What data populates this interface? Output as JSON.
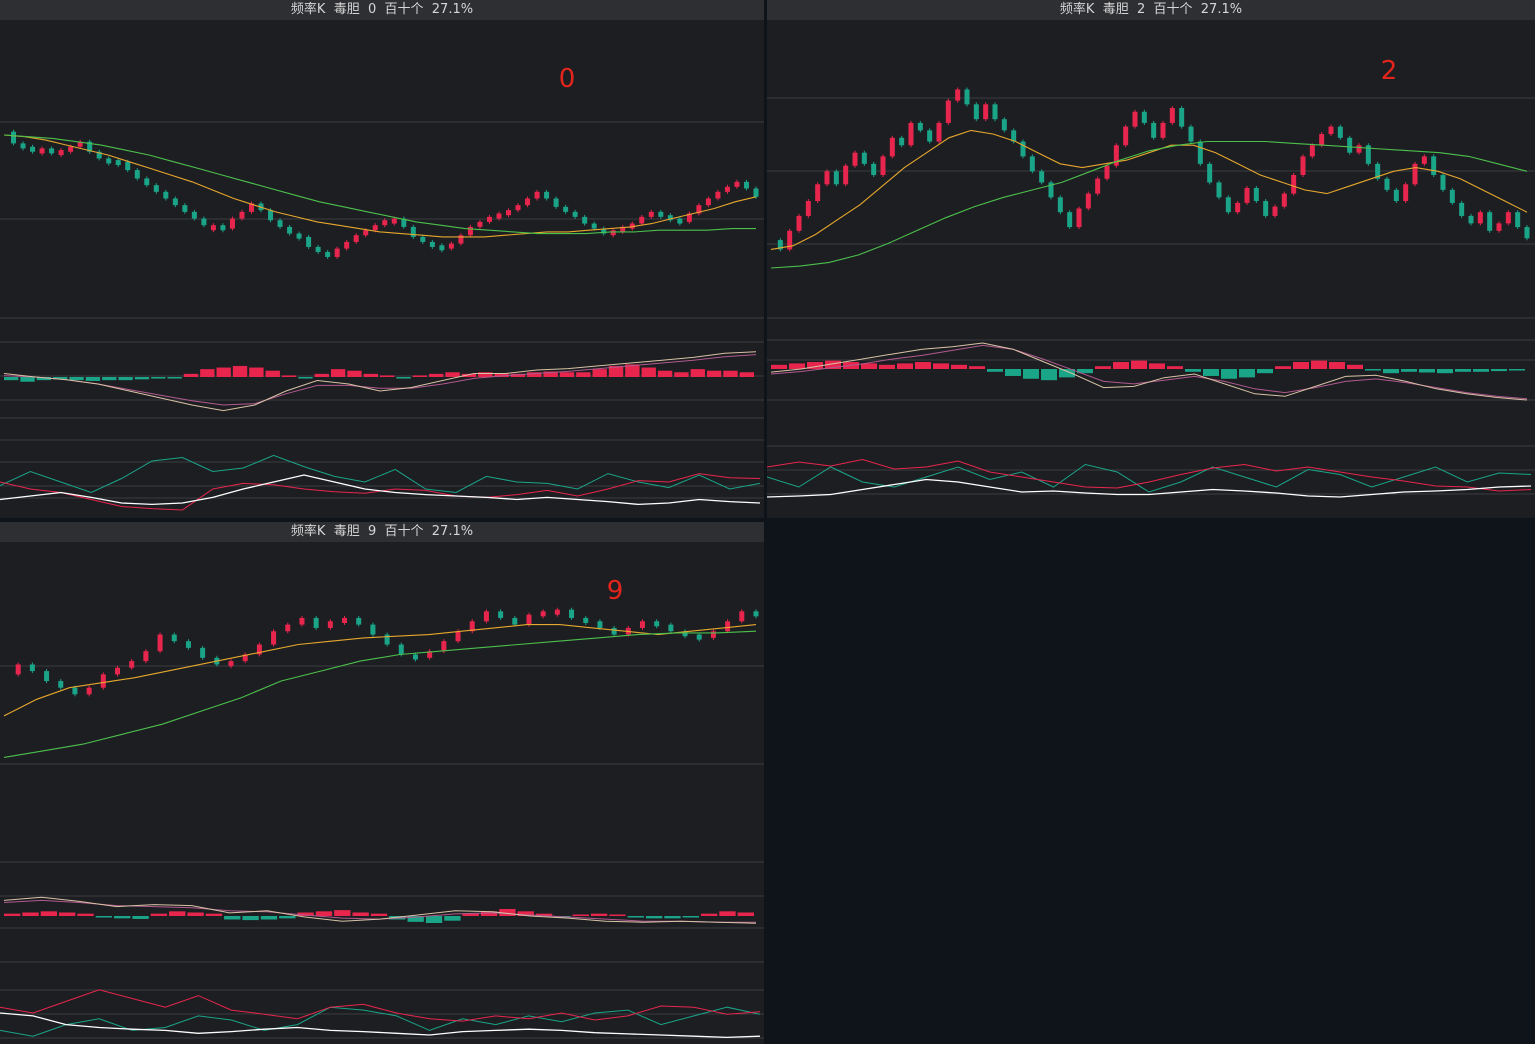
{
  "colors": {
    "background": "#0f131a",
    "panel_bg": "#1d1e22",
    "header_bg": "#2e2f33",
    "grid": "#3b3c40",
    "up": "#e8264d",
    "down": "#1aa589",
    "ma_short": "#e6a72d",
    "ma_long": "#4cc04c",
    "macd_dif": "#d8c3a5",
    "macd_dea": "#b05a8e",
    "kdj_k": "#ffffff",
    "kdj_d": "#1aa589",
    "kdj_j": "#e8264d",
    "label": "#e5241c"
  },
  "panels": [
    {
      "header": "频率K  毒胆  0  百十个  27.1%",
      "big_label": "0",
      "chart_data": {
        "type": "candlestick",
        "main": {
          "path": "0.90,0.83,0.81,0.78,0.80,0.78,0.79,0.81,0.84,0.78,0.74,0.73,0.72,0.67,0.62,0.58,0.54,0.50,0.46,0.42,0.38,0.34,0.34,0.32,0.38,0.42,0.47,0.43,0.37,0.33,0.29,0.27,0.21,0.18,0.15,0.20,0.24,0.28,0.31,0.34,0.37,0.38,0.33,0.27,0.24,0.22,0.21,0.23,0.28,0.33,0.36,0.39,0.41,0.43,0.46,0.50,0.54,0.50,0.45,0.42,0.39,0.35,0.32,0.30,0.31,0.33,0.35,0.39,0.42,0.40,0.38,0.36,0.41,0.46,0.50,0.54,0.57,0.60,0.56,0.51",
          "ma_short": "0.88,0.87,0.85,0.82,0.79,0.76,0.72,0.68,0.64,0.60,0.55,0.50,0.46,0.42,0.39,0.36,0.34,0.32,0.30,0.29,0.28,0.27,0.27,0.27,0.28,0.29,0.30,0.30,0.31,0.32,0.33,0.35,0.38,0.41,0.44,0.48,0.51",
          "ma_long": "0.88,0.87,0.86,0.84,0.82,0.79,0.76,0.72,0.68,0.64,0.60,0.56,0.52,0.48,0.45,0.42,0.39,0.36,0.34,0.32,0.31,0.30,0.29,0.29,0.29,0.30,0.30,0.31,0.31,0.31,0.32,0.32",
          "levels": 3
        },
        "macd": {
          "dif": "0.55,0.50,0.46,0.40,0.30,0.20,0.10,0.02,0.10,0.30,0.45,0.40,0.30,0.35,0.45,0.55,0.55,0.60,0.62,0.66,0.70,0.74,0.78,0.84,0.86",
          "dea": "0.52,0.50,0.46,0.40,0.32,0.24,0.16,0.10,0.12,0.26,0.38,0.38,0.34,0.34,0.40,0.48,0.52,0.55,0.58,0.62,0.66,0.70,0.74,0.79,0.82",
          "hist": "-0.2,-0.3,-0.2,-0.15,-0.2,-0.25,-0.2,-0.2,-0.15,-0.1,-0.05,0.2,0.5,0.6,0.7,0.6,0.4,0.1,-0.05,0.2,0.5,0.4,0.2,0.1,-0.05,0.1,0.2,0.3,0.2,0.3,0.25,0.2,0.3,0.35,0.3,0.3,0.5,0.7,0.8,0.6,0.4,0.3,0.5,0.4,0.4,0.3"
        },
        "kdj": {
          "k": "0.15,0.20,0.25,0.18,0.10,0.08,0.10,0.18,0.30,0.40,0.50,0.40,0.30,0.25,0.22,0.20,0.18,0.15,0.18,0.15,0.12,0.08,0.10,0.15,0.12,0.10",
          "d": "0.35,0.55,0.40,0.25,0.45,0.70,0.75,0.55,0.60,0.78,0.62,0.48,0.40,0.58,0.30,0.25,0.48,0.40,0.38,0.30,0.52,0.40,0.32,0.50,0.30,0.38",
          "j": "0.40,0.30,0.25,0.15,0.05,0.02,0.00,0.30,0.38,0.36,0.30,0.26,0.24,0.30,0.28,0.20,0.18,0.22,0.28,0.20,0.30,0.42,0.40,0.52,0.46,0.45"
        }
      }
    },
    {
      "header": "频率K  毒胆  2  百十个  27.1%",
      "big_label": "2",
      "chart_data": {
        "type": "candlestick",
        "main": {
          "path": "0.15,0.10,0.20,0.28,0.36,0.45,0.52,0.45,0.55,0.62,0.56,0.50,0.60,0.70,0.66,0.78,0.74,0.68,0.78,0.90,0.96,0.88,0.80,0.88,0.80,0.74,0.68,0.60,0.52,0.46,0.38,0.30,0.22,0.32,0.40,0.48,0.55,0.66,0.76,0.84,0.78,0.70,0.78,0.86,0.76,0.68,0.56,0.46,0.38,0.30,0.35,0.43,0.36,0.28,0.33,0.40,0.50,0.60,0.66,0.72,0.76,0.70,0.62,0.66,0.56,0.48,0.42,0.36,0.45,0.56,0.60,0.50,0.42,0.35,0.28,0.24,0.30,0.20,0.24,0.30,0.22,0.16",
          "ma_short": "0.10,0.12,0.18,0.26,0.34,0.44,0.54,0.62,0.70,0.74,0.72,0.68,0.62,0.56,0.54,0.56,0.58,0.62,0.66,0.66,0.62,0.56,0.50,0.46,0.42,0.40,0.44,0.48,0.52,0.54,0.52,0.48,0.42,0.36,0.30",
          "ma_long": "0.00,0.01,0.03,0.07,0.13,0.20,0.27,0.33,0.38,0.42,0.46,0.52,0.58,0.63,0.66,0.68,0.68,0.68,0.67,0.66,0.65,0.64,0.63,0.62,0.60,0.56,0.52",
          "levels": 4
        },
        "macd": {
          "dif": "0.45,0.50,0.58,0.66,0.74,0.82,0.86,0.92,0.82,0.62,0.42,0.20,0.22,0.36,0.42,0.26,0.10,0.06,0.22,0.38,0.40,0.30,0.18,0.10,0.04,0.00",
          "dea": "0.42,0.46,0.52,0.58,0.66,0.72,0.80,0.88,0.82,0.66,0.48,0.30,0.26,0.32,0.38,0.30,0.18,0.12,0.20,0.30,0.34,0.28,0.20,0.12,0.06,0.02",
          "hist": "0.3,0.4,0.5,0.6,0.5,0.4,0.3,0.4,0.5,0.4,0.3,0.2,-0.2,-0.5,-0.7,-0.8,-0.6,-0.3,0.2,0.5,0.6,0.4,0.2,-0.2,-0.5,-0.7,-0.6,-0.3,0.2,0.5,0.6,0.5,0.3,-0.1,-0.3,-0.2,-0.25,-0.3,-0.2,-0.2,-0.15,-0.1"
        },
        "kdj": {
          "k": "0.10,0.12,0.15,0.25,0.35,0.45,0.40,0.30,0.20,0.22,0.18,0.15,0.15,0.20,0.25,0.22,0.18,0.12,0.10,0.15,0.20,0.22,0.25,0.30,0.32",
          "d": "0.50,0.30,0.70,0.40,0.30,0.50,0.70,0.45,0.60,0.30,0.75,0.60,0.20,0.40,0.70,0.50,0.30,0.65,0.55,0.30,0.50,0.70,0.40,0.58,0.55",
          "j": "0.70,0.80,0.72,0.85,0.66,0.70,0.82,0.60,0.50,0.40,0.30,0.28,0.40,0.55,0.68,0.75,0.62,0.70,0.60,0.50,0.42,0.32,0.30,0.22,0.25"
        }
      }
    },
    {
      "header": "频率K  毒胆  9  百十个  27.1%",
      "big_label": "9",
      "chart_data": {
        "type": "candlestick",
        "main": {
          "path": "0.60,0.66,0.62,0.56,0.52,0.48,0.52,0.60,0.64,0.68,0.74,0.84,0.80,0.76,0.70,0.66,0.68,0.72,0.78,0.86,0.90,0.94,0.88,0.92,0.94,0.90,0.84,0.78,0.72,0.70,0.74,0.80,0.86,0.92,0.98,0.94,0.90,0.96,0.98,0.99,0.94,0.92,0.88,0.84,0.88,0.92,0.90,0.86,0.84,0.82,0.86,0.92,0.98,0.95",
          "ma_short": "0.35,0.45,0.52,0.55,0.58,0.62,0.66,0.70,0.74,0.78,0.80,0.82,0.83,0.84,0.86,0.88,0.90,0.90,0.88,0.86,0.84,0.86,0.88,0.90",
          "ma_long": "0.10,0.14,0.18,0.24,0.30,0.38,0.46,0.56,0.62,0.68,0.72,0.74,0.76,0.78,0.80,0.82,0.84,0.85,0.85,0.86",
          "levels": 3
        },
        "macd": {
          "dif": "0.80,0.86,0.78,0.68,0.72,0.70,0.56,0.60,0.48,0.40,0.44,0.52,0.60,0.58,0.50,0.46,0.40,0.38,0.40,0.38,0.36",
          "dea": "0.76,0.80,0.76,0.70,0.68,0.66,0.60,0.58,0.52,0.46,0.44,0.48,0.54,0.56,0.52,0.48,0.44,0.40,0.40,0.38,0.38",
          "hist": "0.2,0.3,0.4,0.3,0.2,-0.1,-0.2,-0.25,0.2,0.4,0.3,0.2,-0.3,-0.35,-0.3,-0.2,0.3,0.4,0.5,0.3,0.2,-0.3,-0.5,-0.6,-0.4,0.2,0.4,0.6,0.4,0.2,-0.1,0.1,0.2,0.1,-0.1,-0.2,-0.2,-0.1,0.2,0.4,0.3"
        },
        "kdj": {
          "k": "0.50,0.45,0.30,0.25,0.22,0.20,0.15,0.18,0.22,0.25,0.20,0.18,0.15,0.12,0.18,0.20,0.22,0.20,0.16,0.14,0.12,0.10,0.08,0.10",
          "d": "0.20,0.10,0.30,0.40,0.20,0.25,0.45,0.38,0.20,0.30,0.60,0.55,0.45,0.20,0.40,0.30,0.45,0.35,0.50,0.55,0.30,0.45,0.60,0.48",
          "j": "0.60,0.50,0.70,0.90,0.75,0.60,0.80,0.55,0.48,0.40,0.60,0.65,0.50,0.40,0.36,0.45,0.40,0.50,0.38,0.45,0.62,0.60,0.48,0.52"
        }
      }
    }
  ]
}
